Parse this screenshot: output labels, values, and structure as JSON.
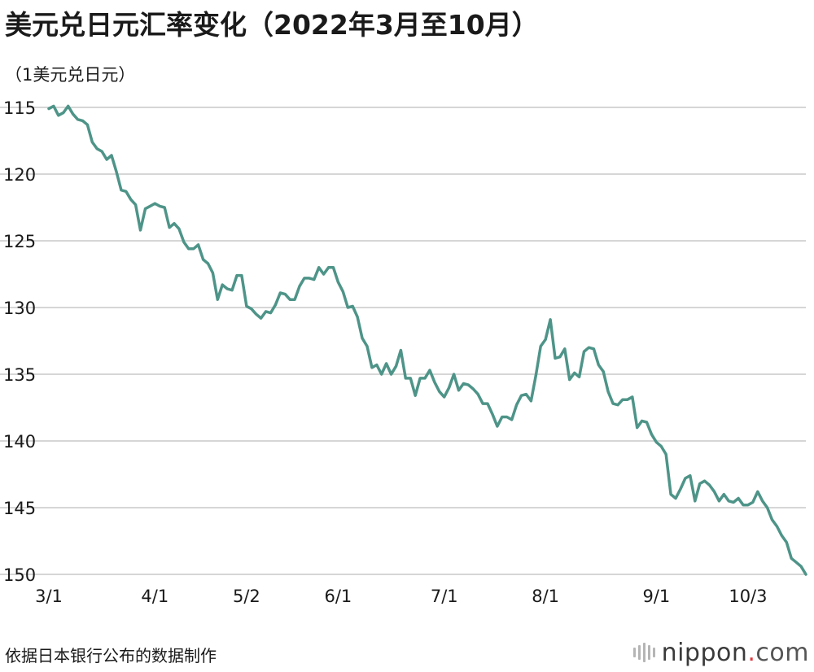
{
  "chart_data": {
    "type": "line",
    "title": "美元兑日元汇率变化（2022年3月至10月）",
    "ylabel": "（1美元兑日元）",
    "source": "依据日本银行公布的数据制作",
    "y_reversed": true,
    "ylim": [
      115,
      150
    ],
    "yticks": [
      115,
      120,
      125,
      130,
      135,
      140,
      145,
      150
    ],
    "xticks": [
      {
        "label": "3/1",
        "index": 0
      },
      {
        "label": "4/1",
        "index": 22
      },
      {
        "label": "5/2",
        "index": 41
      },
      {
        "label": "6/1",
        "index": 60
      },
      {
        "label": "7/1",
        "index": 82
      },
      {
        "label": "8/1",
        "index": 103
      },
      {
        "label": "9/1",
        "index": 126
      },
      {
        "label": "10/3",
        "index": 145
      }
    ],
    "series": [
      {
        "color": "#4e9488",
        "values": [
          115.1,
          114.9,
          115.6,
          115.4,
          114.9,
          115.5,
          115.9,
          116.0,
          116.3,
          117.6,
          118.1,
          118.3,
          118.9,
          118.6,
          119.8,
          121.2,
          121.3,
          121.9,
          122.3,
          124.2,
          122.6,
          122.4,
          122.2,
          122.4,
          122.5,
          124.0,
          123.7,
          124.1,
          125.1,
          125.6,
          125.6,
          125.3,
          126.4,
          126.7,
          127.4,
          129.4,
          128.3,
          128.6,
          128.7,
          127.6,
          127.6,
          129.9,
          130.1,
          130.5,
          130.8,
          130.3,
          130.4,
          129.8,
          128.9,
          129.0,
          129.4,
          129.4,
          128.4,
          127.8,
          127.8,
          127.9,
          127.0,
          127.5,
          127.0,
          127.0,
          128.1,
          128.8,
          130.0,
          129.9,
          130.7,
          132.3,
          132.9,
          134.5,
          134.3,
          135.0,
          134.2,
          135.0,
          134.4,
          133.2,
          135.3,
          135.3,
          136.6,
          135.3,
          135.3,
          134.7,
          135.6,
          136.3,
          136.7,
          136.0,
          135.0,
          136.2,
          135.7,
          135.8,
          136.1,
          136.5,
          137.2,
          137.2,
          138.0,
          138.9,
          138.2,
          138.2,
          138.4,
          137.3,
          136.6,
          136.5,
          137.0,
          135.1,
          132.9,
          132.4,
          130.9,
          133.8,
          133.7,
          133.1,
          135.4,
          134.9,
          135.2,
          133.3,
          133.0,
          133.1,
          134.3,
          134.8,
          136.3,
          137.2,
          137.3,
          136.9,
          136.9,
          136.7,
          139.0,
          138.5,
          138.6,
          139.5,
          140.1,
          140.4,
          141.0,
          144.0,
          144.3,
          143.6,
          142.8,
          142.6,
          144.5,
          143.2,
          143.0,
          143.3,
          143.8,
          144.5,
          144.0,
          144.5,
          144.6,
          144.3,
          144.8,
          144.8,
          144.6,
          143.8,
          144.5,
          145.0,
          145.9,
          146.4,
          147.1,
          147.6,
          148.8,
          149.1,
          149.4,
          150.0
        ]
      }
    ]
  },
  "branding": {
    "name": "nippon",
    "dot": ".",
    "suffix": "com"
  },
  "colors": {
    "line": "#4e9488",
    "grid": "#c8c8c8",
    "text": "#1a1a1a",
    "brand_dot": "#e0383e"
  }
}
